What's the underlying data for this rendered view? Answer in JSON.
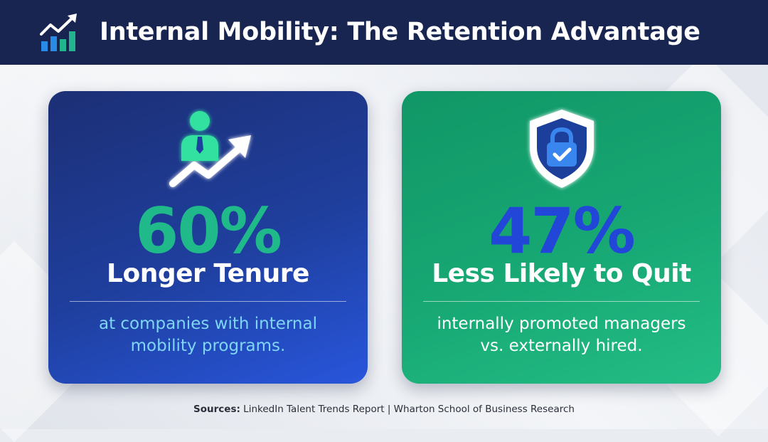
{
  "header": {
    "title": "Internal Mobility: The Retention Advantage",
    "icon": "growth-chart-icon"
  },
  "cards": [
    {
      "icon": "businessman-growth-arrow-icon",
      "stat": "60%",
      "headline": "Longer Tenure",
      "description_lines": [
        "at companies with internal",
        "mobility programs."
      ],
      "background": "#1f3f9e",
      "stat_color": "#1fb98a"
    },
    {
      "icon": "shield-lock-check-icon",
      "stat": "47%",
      "headline": "Less Likely to Quit",
      "description_lines": [
        "internally promoted managers",
        "vs. externally hired."
      ],
      "background": "#17a874",
      "stat_color": "#2246d8"
    }
  ],
  "footer": {
    "sources_label": "Sources:",
    "sources_text": "LinkedIn Talent Trends Report | Wharton School of Business Research"
  }
}
